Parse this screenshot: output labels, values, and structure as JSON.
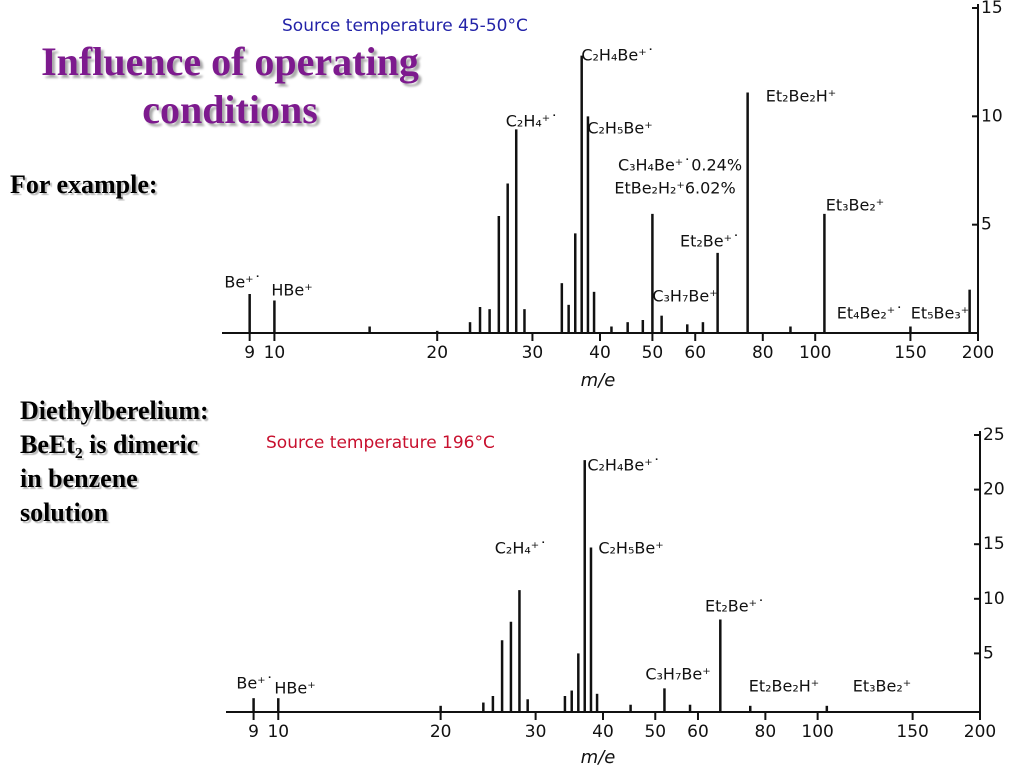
{
  "slide": {
    "title": "Influence of operating conditions",
    "example": "For example:",
    "description": [
      "Diethylberelium:",
      "BeEt₂ is dimeric",
      "in benzene",
      "solution"
    ]
  },
  "chart_data": [
    {
      "type": "stem",
      "title": "Source temperature 45-50°C",
      "title_color": "#2323a8",
      "color": "#111111",
      "xlabel": "m/e",
      "xscale": "log",
      "xlim": [
        8,
        200
      ],
      "xticks": [
        9,
        10,
        20,
        30,
        40,
        50,
        60,
        80,
        100,
        150,
        200
      ],
      "ylim": [
        0,
        15
      ],
      "yticks": [
        5,
        10,
        15
      ],
      "x": [
        9,
        10,
        15,
        20,
        23,
        24,
        25,
        26,
        27,
        28,
        29,
        34,
        35,
        36,
        37,
        38,
        39,
        42,
        45,
        48,
        50,
        52,
        58,
        62,
        66,
        75,
        90,
        104,
        150,
        193
      ],
      "values": [
        1.8,
        1.5,
        0.3,
        0.1,
        0.5,
        1.2,
        1.1,
        5.4,
        6.9,
        9.4,
        1.1,
        2.3,
        1.3,
        4.6,
        12.8,
        10.0,
        1.9,
        0.3,
        0.5,
        0.6,
        5.5,
        0.8,
        0.4,
        0.5,
        3.7,
        11.1,
        0.3,
        5.5,
        0.3,
        2.0
      ],
      "annotations": [
        "Be⁺˙",
        "HBe⁺",
        "C₂H₄⁺˙",
        "C₂H₄Be⁺˙",
        "C₂H₅Be⁺",
        "Et₂Be₂H⁺",
        "C₃H₄Be⁺˙0.24%",
        "EtBe₂H₂⁺6.02%",
        "Et₃Be₂⁺",
        "Et₂Be⁺˙",
        "C₃H₇Be⁺",
        "Et₄Be₂⁺˙",
        "Et₅Be₃⁺"
      ]
    },
    {
      "type": "stem",
      "title": "Source temperature 196°C",
      "title_color": "#c8102e",
      "color": "#111111",
      "xlabel": "m/e",
      "xscale": "log",
      "xlim": [
        8,
        200
      ],
      "xticks": [
        9,
        10,
        20,
        30,
        40,
        50,
        60,
        80,
        100,
        150,
        200
      ],
      "ylim": [
        0,
        25
      ],
      "yticks": [
        5,
        10,
        15,
        20,
        25
      ],
      "x": [
        9,
        10,
        20,
        24,
        25,
        26,
        27,
        28,
        29,
        34,
        35,
        36,
        37,
        38,
        39,
        45,
        52,
        58,
        66,
        75,
        104
      ],
      "values": [
        0.9,
        0.9,
        0.2,
        0.5,
        1.1,
        6.2,
        7.9,
        10.8,
        0.8,
        1.1,
        1.6,
        5.0,
        22.7,
        14.7,
        1.3,
        0.3,
        1.8,
        0.3,
        8.1,
        0.2,
        0.2
      ],
      "annotations": [
        "Be⁺˙",
        "HBe⁺",
        "C₂H₄⁺˙",
        "C₂H₄Be⁺˙",
        "C₂H₅Be⁺",
        "Et₂Be⁺˙",
        "C₃H₇Be⁺",
        "Et₂Be₂H⁺",
        "Et₃Be₂⁺"
      ]
    }
  ]
}
